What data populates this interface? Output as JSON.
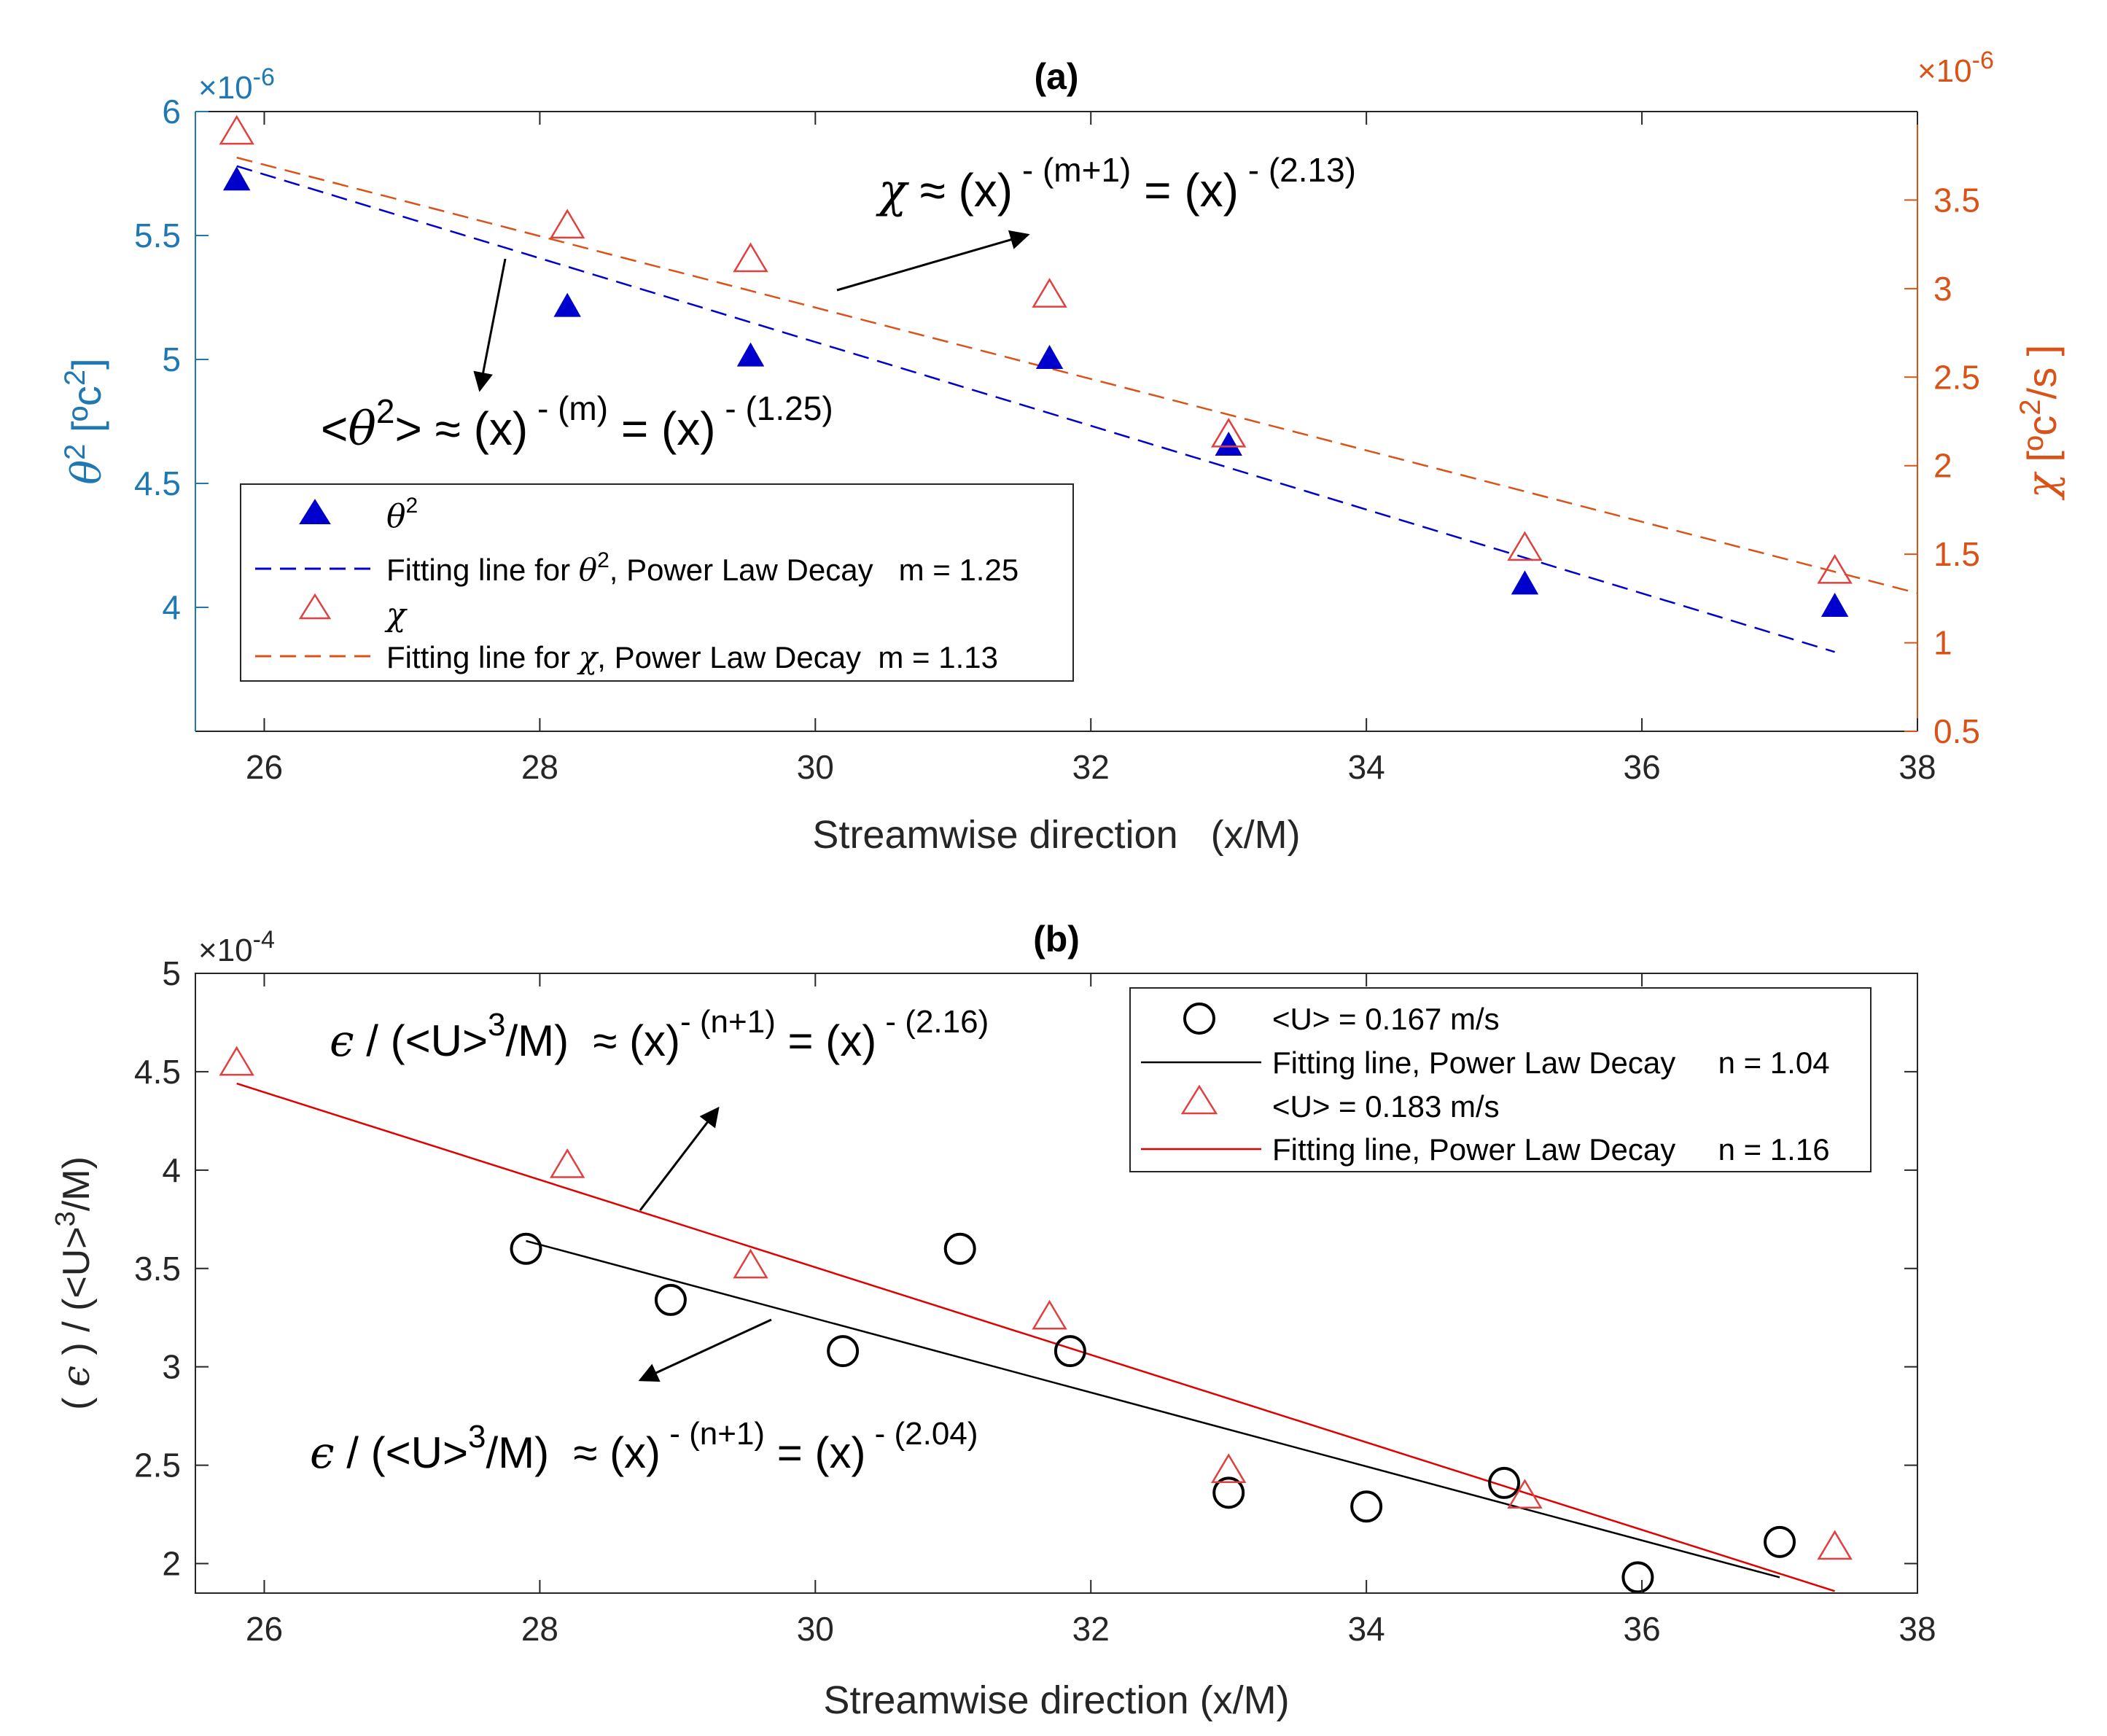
{
  "chart_data": [
    {
      "id": "a",
      "type": "scatter",
      "title": "(a)",
      "xlabel": "Streamwise direction   (x/M)",
      "xlim": [
        25.5,
        38
      ],
      "xticks": [
        26,
        28,
        30,
        32,
        34,
        36,
        38
      ],
      "left_axis": {
        "label_sym": "θ",
        "label_sup": "2",
        "label_rest": " [ºc",
        "label_sup2": "2",
        "label_end": "]",
        "ylim": [
          3.5,
          6
        ],
        "ticks": [
          4,
          4.5,
          5,
          5.5,
          6
        ],
        "tick_labels": [
          "4",
          "4.5",
          "5",
          "5.5",
          "6"
        ],
        "exponent_prefix": "×10",
        "exponent": "-6",
        "color": "#1f77b4"
      },
      "right_axis": {
        "label_sym": "χ",
        "label_rest": " [ºc",
        "label_sup": "2",
        "label_end": "/s ]",
        "ylim": [
          0.5,
          4
        ],
        "ticks": [
          0.5,
          1,
          1.5,
          2,
          2.5,
          3,
          3.5
        ],
        "tick_labels": [
          "0.5",
          "1",
          "1.5",
          "2",
          "2.5",
          "3",
          "3.5"
        ],
        "exponent_prefix": "×10",
        "exponent": "-6",
        "color": "#d95319"
      },
      "series": [
        {
          "name": "θ2",
          "axis": "left",
          "marker": "filled-triangle",
          "color": "#0000cc",
          "x": [
            25.8,
            28.2,
            29.53,
            31.7,
            33.0,
            35.15,
            37.4
          ],
          "y": [
            5.72,
            5.21,
            5.01,
            5.0,
            4.65,
            4.09,
            4.0
          ]
        },
        {
          "name": "Fitting line for θ2, Power Law Decay   m = 1.25",
          "axis": "left",
          "marker": "dashed-line",
          "color": "#0000cc",
          "x": [
            25.8,
            37.4
          ],
          "y": [
            5.78,
            3.82
          ]
        },
        {
          "name": "χ",
          "axis": "right",
          "marker": "open-triangle",
          "color": "#e04040",
          "x": [
            25.8,
            28.2,
            29.53,
            31.7,
            33.0,
            35.15,
            37.4
          ],
          "y": [
            3.88,
            3.35,
            3.16,
            2.96,
            2.17,
            1.53,
            1.4
          ]
        },
        {
          "name": "Fitting line for χ, Power Law Decay   m = 1.13",
          "axis": "right",
          "marker": "dashed-line",
          "color": "#d95319",
          "x": [
            25.8,
            38.0
          ],
          "y": [
            3.74,
            1.28
          ]
        }
      ],
      "legend": {
        "position": "bottom-left",
        "entries": [
          {
            "sym": "θ",
            "sup": "2"
          },
          {
            "text_a": "Fitting line for ",
            "sym": "θ",
            "sup": "2",
            "text_b": ", Power Law Decay   m = 1.25"
          },
          {
            "sym": "χ"
          },
          {
            "text_a": "Fitting line for ",
            "sym": "χ",
            "text_b": ", Power Law Decay  m = 1.13"
          }
        ]
      },
      "annotations": [
        {
          "id": "chi",
          "parts": [
            "χ",
            " ≈ (x)",
            " - (m+1)",
            " = (x)",
            " - (2.13)"
          ]
        },
        {
          "id": "theta",
          "parts": [
            "<",
            "θ",
            "2",
            "> ≈ (x)",
            " - (m)",
            " = (x)",
            " - (1.25)"
          ]
        }
      ]
    },
    {
      "id": "b",
      "type": "scatter",
      "title": "(b)",
      "xlabel": "Streamwise direction (x/M)",
      "ylabel_parts": [
        "( ",
        "ϵ",
        " ) / (<U>",
        "3",
        "/M)"
      ],
      "xlim": [
        25.5,
        38
      ],
      "xticks": [
        26,
        28,
        30,
        32,
        34,
        36,
        38
      ],
      "ylim": [
        1.85,
        5
      ],
      "yticks": [
        2,
        2.5,
        3,
        3.5,
        4,
        4.5,
        5
      ],
      "ytick_labels": [
        "2",
        "2.5",
        "3",
        "3.5",
        "4",
        "4.5",
        "5"
      ],
      "exponent_prefix": "×10",
      "exponent": "-4",
      "series": [
        {
          "name": "<U> = 0.167 m/s",
          "marker": "open-circle",
          "color": "#000000",
          "x": [
            27.9,
            28.95,
            30.2,
            31.05,
            31.85,
            33.0,
            34.0,
            35.0,
            35.97,
            37.0
          ],
          "y": [
            3.6,
            3.34,
            3.08,
            3.6,
            3.08,
            2.36,
            2.29,
            2.41,
            1.93,
            2.11
          ]
        },
        {
          "name": "Fitting line, Power Law Decay     n = 1.04",
          "marker": "solid-line",
          "color": "#000000",
          "x": [
            27.9,
            37.0
          ],
          "y": [
            3.64,
            1.93
          ]
        },
        {
          "name": "<U> = 0.183 m/s",
          "marker": "open-triangle",
          "color": "#e04040",
          "x": [
            25.8,
            28.2,
            29.53,
            31.7,
            33.0,
            35.15,
            37.4
          ],
          "y": [
            4.54,
            4.02,
            3.51,
            3.25,
            2.47,
            2.34,
            2.08
          ]
        },
        {
          "name": "Fitting line, Power Law Decay     n = 1.16",
          "marker": "solid-line",
          "color": "#e00000",
          "x": [
            25.8,
            37.4
          ],
          "y": [
            4.44,
            1.86
          ]
        }
      ],
      "legend": {
        "position": "top-right",
        "entries": [
          {
            "text": "<U> = 0.167 m/s"
          },
          {
            "text": "Fitting line, Power Law Decay     n = 1.04"
          },
          {
            "text": "<U> = 0.183 m/s"
          },
          {
            "text": "Fitting line, Power Law Decay     n = 1.16"
          }
        ]
      },
      "annotations": [
        {
          "id": "top",
          "parts": [
            "ϵ",
            " / (<U>",
            "3",
            "/M)  ≈ (x)",
            "- (n+1)",
            " = (x)",
            " - (2.16)"
          ]
        },
        {
          "id": "bottom",
          "parts": [
            "ϵ",
            " / (<U>",
            "3",
            "/M)  ≈ (x)",
            " - (n+1)",
            " = (x)",
            " - (2.04)"
          ]
        }
      ]
    }
  ]
}
